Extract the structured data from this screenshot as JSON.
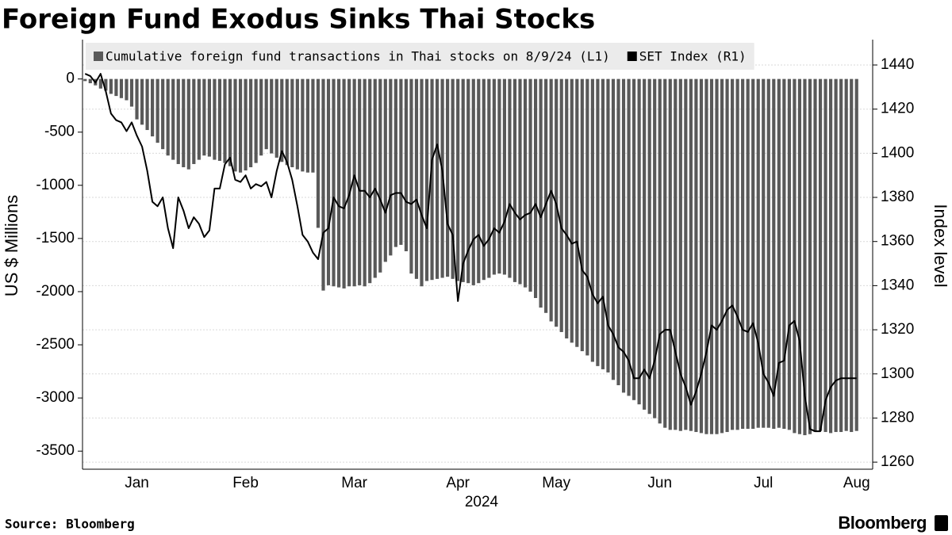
{
  "chart_data": {
    "type": "bar_line",
    "title": "Foreign Fund Exodus Sinks Thai Stocks",
    "source": "Source: Bloomberg",
    "brand": "Bloomberg",
    "y_label": "US $ Millions",
    "y2_label": "Index level",
    "x_label": "2024",
    "legend": "top-left",
    "grid": true,
    "categories": [
      null,
      null,
      null,
      null,
      null,
      null,
      null,
      null,
      null,
      null,
      "Jan",
      null,
      null,
      null,
      null,
      null,
      null,
      null,
      null,
      null,
      null,
      null,
      null,
      null,
      null,
      null,
      null,
      null,
      null,
      null,
      null,
      "Feb",
      null,
      null,
      null,
      null,
      null,
      null,
      null,
      null,
      null,
      null,
      null,
      null,
      null,
      null,
      null,
      null,
      null,
      null,
      null,
      null,
      "Mar",
      null,
      null,
      null,
      null,
      null,
      null,
      null,
      null,
      null,
      null,
      null,
      null,
      null,
      null,
      null,
      null,
      null,
      null,
      null,
      "Apr",
      null,
      null,
      null,
      null,
      null,
      null,
      null,
      null,
      null,
      null,
      null,
      null,
      null,
      null,
      null,
      null,
      null,
      null,
      "May",
      null,
      null,
      null,
      null,
      null,
      null,
      null,
      null,
      null,
      null,
      null,
      null,
      null,
      null,
      null,
      null,
      null,
      null,
      null,
      "Jun",
      null,
      null,
      null,
      null,
      null,
      null,
      null,
      null,
      null,
      null,
      null,
      null,
      null,
      null,
      null,
      null,
      null,
      null,
      null,
      "Jul",
      null,
      null,
      null,
      null,
      null,
      null,
      null,
      null,
      null,
      null,
      null,
      null,
      null,
      null,
      null,
      null,
      null,
      "Aug"
    ],
    "series": [
      {
        "name": "Cumulative foreign fund transactions in Thai stocks on 8/9/24 (L1)",
        "color": "#595959",
        "type": "bar",
        "values": [
          -20,
          -40,
          -60,
          -90,
          -110,
          -140,
          -160,
          -180,
          -200,
          -260,
          -380,
          -430,
          -480,
          -540,
          -600,
          -660,
          -720,
          -760,
          -800,
          -830,
          -850,
          -800,
          -760,
          -720,
          -730,
          -760,
          -770,
          -790,
          -820,
          -870,
          -880,
          -860,
          -830,
          -790,
          -720,
          -660,
          -700,
          -740,
          -780,
          -810,
          -830,
          -850,
          -870,
          -880,
          -880,
          -1400,
          -1990,
          -1940,
          -1950,
          -1960,
          -1970,
          -1950,
          -1950,
          -1940,
          -1950,
          -1920,
          -1870,
          -1820,
          -1720,
          -1660,
          -1580,
          -1560,
          -1620,
          -1830,
          -1880,
          -1950,
          -1900,
          -1890,
          -1880,
          -1870,
          -1860,
          -1880,
          -1900,
          -1910,
          -1920,
          -1940,
          -1920,
          -1890,
          -1870,
          -1840,
          -1830,
          -1840,
          -1870,
          -1910,
          -1930,
          -1960,
          -2000,
          -2060,
          -2150,
          -2200,
          -2280,
          -2330,
          -2380,
          -2440,
          -2480,
          -2520,
          -2560,
          -2600,
          -2660,
          -2700,
          -2730,
          -2760,
          -2830,
          -2880,
          -2950,
          -2980,
          -3020,
          -3060,
          -3110,
          -3150,
          -3190,
          -3240,
          -3280,
          -3300,
          -3300,
          -3310,
          -3300,
          -3310,
          -3320,
          -3330,
          -3340,
          -3340,
          -3340,
          -3330,
          -3320,
          -3300,
          -3300,
          -3290,
          -3290,
          -3290,
          -3280,
          -3280,
          -3280,
          -3290,
          -3280,
          -3290,
          -3300,
          -3330,
          -3340,
          -3350,
          -3340,
          -3320,
          -3310,
          -3320,
          -3330,
          -3320,
          -3320,
          -3310,
          -3320,
          -3310
        ]
      },
      {
        "name": "SET Index (R1)",
        "color": "#000000",
        "type": "line",
        "axis": "y2",
        "values": [
          1436,
          1435,
          1432,
          1436,
          1428,
          1418,
          1415,
          1414,
          1410,
          1414,
          1408,
          1403,
          1392,
          1378,
          1376,
          1380,
          1366,
          1357,
          1380,
          1374,
          1366,
          1371,
          1368,
          1362,
          1365,
          1384,
          1384,
          1395,
          1398,
          1388,
          1387,
          1390,
          1384,
          1386,
          1385,
          1387,
          1380,
          1392,
          1401,
          1396,
          1388,
          1376,
          1363,
          1360,
          1355,
          1352,
          1364,
          1366,
          1380,
          1376,
          1375,
          1381,
          1390,
          1383,
          1383,
          1380,
          1384,
          1379,
          1373,
          1381,
          1382,
          1382,
          1378,
          1377,
          1379,
          1372,
          1366,
          1397,
          1404,
          1392,
          1368,
          1363,
          1333,
          1350,
          1356,
          1361,
          1363,
          1358,
          1361,
          1366,
          1364,
          1369,
          1377,
          1373,
          1370,
          1372,
          1373,
          1377,
          1371,
          1377,
          1383,
          1377,
          1366,
          1363,
          1359,
          1360,
          1347,
          1344,
          1336,
          1332,
          1335,
          1322,
          1318,
          1312,
          1310,
          1306,
          1298,
          1298,
          1302,
          1298,
          1306,
          1318,
          1320,
          1320,
          1310,
          1300,
          1294,
          1286,
          1292,
          1300,
          1310,
          1322,
          1320,
          1324,
          1329,
          1331,
          1326,
          1320,
          1319,
          1323,
          1314,
          1300,
          1296,
          1290,
          1305,
          1306,
          1322,
          1324,
          1315,
          1290,
          1275,
          1274,
          1274,
          1288,
          1294,
          1297,
          1298,
          1298,
          1298,
          1298
        ]
      }
    ],
    "ylim": [
      -3670,
      370
    ],
    "yticks": [
      0,
      -500,
      -1000,
      -1500,
      -2000,
      -2500,
      -3000,
      -3500
    ],
    "y2lim": [
      1256.8,
      1451.5
    ],
    "y2ticks": [
      1260,
      1280,
      1300,
      1320,
      1340,
      1360,
      1380,
      1400,
      1420,
      1440
    ]
  }
}
